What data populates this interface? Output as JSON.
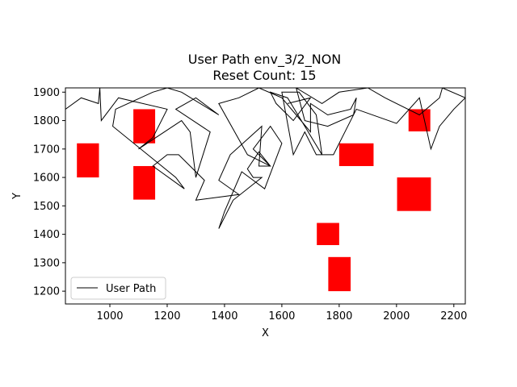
{
  "chart_data": {
    "type": "line",
    "title_line1": "User Path env_3/2_NON",
    "title_line2": "Reset Count: 15",
    "xlabel": "X",
    "ylabel": "Y",
    "xlim": [
      845,
      2240
    ],
    "ylim": [
      1155,
      1915
    ],
    "xticks": [
      1000,
      1200,
      1400,
      1600,
      1800,
      2000,
      2200
    ],
    "yticks": [
      1200,
      1300,
      1400,
      1500,
      1600,
      1700,
      1800,
      1900
    ],
    "legend": {
      "placement": "lower-left",
      "label": "User Path"
    },
    "colors": {
      "path": "#000000",
      "obstacle": "#ff0000"
    },
    "obstacles": [
      {
        "x0": 885,
        "x1": 962,
        "y0": 1600,
        "y1": 1720
      },
      {
        "x0": 1082,
        "x1": 1158,
        "y0": 1720,
        "y1": 1840
      },
      {
        "x0": 1082,
        "x1": 1158,
        "y0": 1522,
        "y1": 1640
      },
      {
        "x0": 1800,
        "x1": 1920,
        "y0": 1640,
        "y1": 1720
      },
      {
        "x0": 2042,
        "x1": 2118,
        "y0": 1762,
        "y1": 1840
      },
      {
        "x0": 2002,
        "x1": 2120,
        "y0": 1482,
        "y1": 1600
      },
      {
        "x0": 1722,
        "x1": 1800,
        "y0": 1362,
        "y1": 1440
      },
      {
        "x0": 1762,
        "x1": 1840,
        "y0": 1200,
        "y1": 1320
      }
    ],
    "series": [
      {
        "name": "User Path",
        "points": [
          [
            845,
            1840
          ],
          [
            900,
            1880
          ],
          [
            960,
            1860
          ],
          [
            965,
            1915
          ],
          [
            970,
            1800
          ],
          [
            1030,
            1880
          ],
          [
            1200,
            1840
          ],
          [
            1150,
            1740
          ],
          [
            1100,
            1700
          ],
          [
            1250,
            1800
          ],
          [
            1280,
            1760
          ],
          [
            1300,
            1600
          ],
          [
            1350,
            1760
          ],
          [
            1230,
            1840
          ],
          [
            1300,
            1880
          ],
          [
            1380,
            1820
          ],
          [
            1250,
            1900
          ],
          [
            1200,
            1915
          ],
          [
            1150,
            1900
          ],
          [
            1020,
            1840
          ],
          [
            1010,
            1780
          ],
          [
            1230,
            1600
          ],
          [
            1260,
            1560
          ],
          [
            1150,
            1640
          ],
          [
            1200,
            1680
          ],
          [
            1240,
            1680
          ],
          [
            1330,
            1590
          ],
          [
            1300,
            1520
          ],
          [
            1450,
            1540
          ],
          [
            1380,
            1590
          ],
          [
            1420,
            1680
          ],
          [
            1530,
            1780
          ],
          [
            1520,
            1640
          ],
          [
            1560,
            1640
          ],
          [
            1520,
            1690
          ],
          [
            1480,
            1630
          ],
          [
            1500,
            1600
          ],
          [
            1530,
            1600
          ],
          [
            1430,
            1520
          ],
          [
            1380,
            1420
          ],
          [
            1400,
            1480
          ],
          [
            1460,
            1620
          ],
          [
            1540,
            1560
          ],
          [
            1600,
            1720
          ],
          [
            1560,
            1780
          ],
          [
            1500,
            1700
          ],
          [
            1560,
            1640
          ],
          [
            1480,
            1680
          ],
          [
            1380,
            1860
          ],
          [
            1450,
            1880
          ],
          [
            1520,
            1915
          ],
          [
            1600,
            1880
          ],
          [
            1650,
            1820
          ],
          [
            1700,
            1760
          ],
          [
            1700,
            1860
          ],
          [
            1760,
            1820
          ],
          [
            1840,
            1840
          ],
          [
            1860,
            1880
          ],
          [
            1850,
            1820
          ],
          [
            1760,
            1780
          ],
          [
            1680,
            1800
          ],
          [
            1650,
            1915
          ],
          [
            1740,
            1860
          ],
          [
            1800,
            1900
          ],
          [
            1900,
            1915
          ],
          [
            1960,
            1880
          ],
          [
            2080,
            1820
          ],
          [
            2150,
            1880
          ],
          [
            2160,
            1915
          ],
          [
            2240,
            1880
          ],
          [
            2200,
            1840
          ],
          [
            2150,
            1780
          ],
          [
            2120,
            1700
          ],
          [
            2080,
            1880
          ],
          [
            2000,
            1790
          ],
          [
            1860,
            1840
          ],
          [
            1780,
            1680
          ],
          [
            1720,
            1680
          ],
          [
            1680,
            1760
          ],
          [
            1640,
            1680
          ],
          [
            1600,
            1900
          ],
          [
            1660,
            1900
          ],
          [
            1720,
            1820
          ],
          [
            1740,
            1680
          ],
          [
            1620,
            1880
          ],
          [
            1560,
            1900
          ],
          [
            1580,
            1860
          ],
          [
            1640,
            1800
          ],
          [
            1700,
            1880
          ],
          [
            1620,
            1860
          ]
        ]
      }
    ]
  }
}
